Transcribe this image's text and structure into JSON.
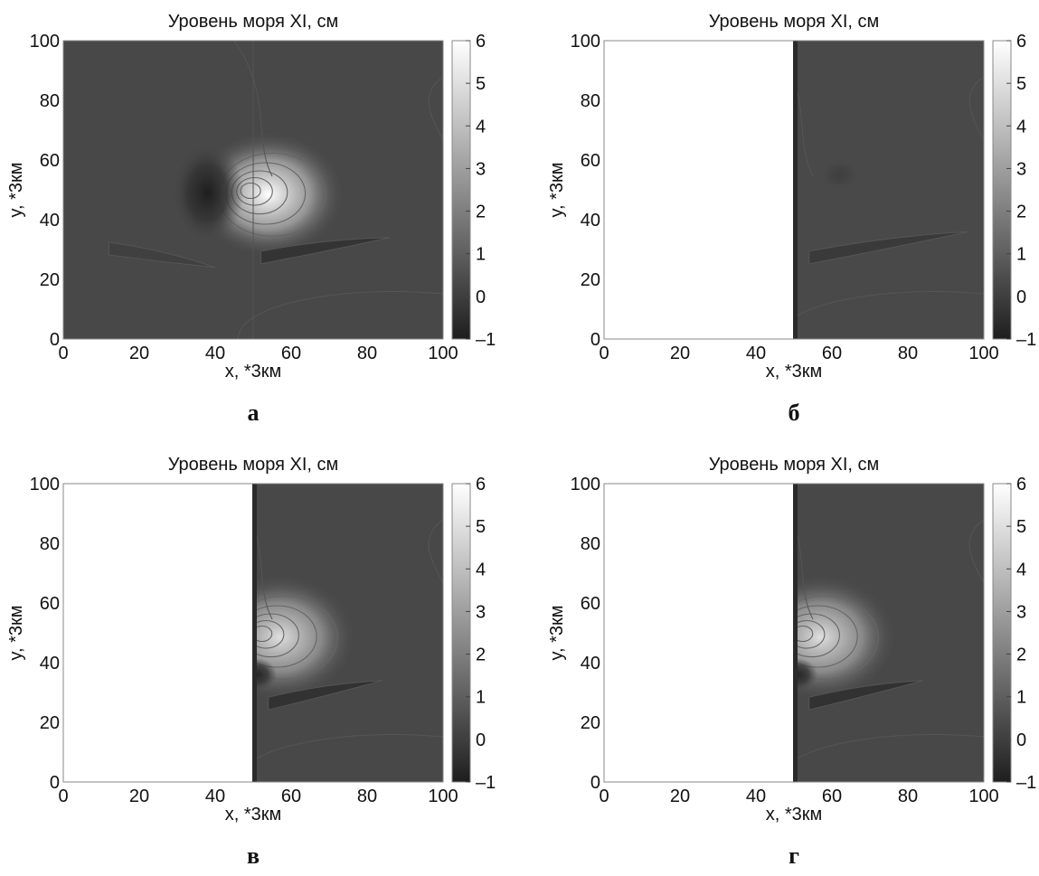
{
  "figure": {
    "panels": [
      {
        "letter": "а",
        "title": "Уровень моря XI, см"
      },
      {
        "letter": "б",
        "title": "Уровень моря XI, см"
      },
      {
        "letter": "в",
        "title": "Уровень моря XI, см"
      },
      {
        "letter": "г",
        "title": "Уровень моря XI, см"
      }
    ]
  },
  "chart_data": [
    {
      "type": "heatmap",
      "title": "Уровень моря XI, см",
      "xlabel": "x, *3км",
      "ylabel": "y, *3км",
      "xlim": [
        0,
        100
      ],
      "ylim": [
        0,
        100
      ],
      "xticks": [
        0,
        20,
        40,
        60,
        80,
        100
      ],
      "yticks": [
        0,
        20,
        40,
        60,
        80,
        100
      ],
      "colorbar": {
        "range": [
          -1,
          6
        ],
        "ticks": [
          -1,
          0,
          1,
          2,
          3,
          4,
          5,
          6
        ],
        "colormap": "gray"
      },
      "background_level": 0.3,
      "masked_left_of_x": null,
      "features": [
        {
          "kind": "max",
          "x": 48,
          "y": 50,
          "value": 6
        },
        {
          "kind": "min",
          "x": 38,
          "y": 49,
          "value": -1
        },
        {
          "kind": "trough",
          "x_from": 52,
          "y_from": 27,
          "x_to": 86,
          "y_to": 34,
          "value": -0.5
        },
        {
          "kind": "trough",
          "x_from": 12,
          "y_from": 30,
          "x_to": 40,
          "y_to": 24,
          "value": 0
        }
      ]
    },
    {
      "type": "heatmap",
      "title": "Уровень моря XI, см",
      "xlabel": "x, *3км",
      "ylabel": "y, *3км",
      "xlim": [
        0,
        100
      ],
      "ylim": [
        0,
        100
      ],
      "xticks": [
        0,
        20,
        40,
        60,
        80,
        100
      ],
      "yticks": [
        0,
        20,
        40,
        60,
        80,
        100
      ],
      "colorbar": {
        "range": [
          -1,
          6
        ],
        "ticks": [
          -1,
          0,
          1,
          2,
          3,
          4,
          5,
          6
        ],
        "colormap": "gray"
      },
      "background_level": 0.35,
      "masked_left_of_x": 50,
      "features": [
        {
          "kind": "min",
          "x": 62,
          "y": 55,
          "value": 0
        },
        {
          "kind": "trough",
          "x_from": 54,
          "y_from": 27,
          "x_to": 96,
          "y_to": 36,
          "value": -0.3
        }
      ]
    },
    {
      "type": "heatmap",
      "title": "Уровень моря XI, см",
      "xlabel": "x, *3км",
      "ylabel": "y, *3км",
      "xlim": [
        0,
        100
      ],
      "ylim": [
        0,
        100
      ],
      "xticks": [
        0,
        20,
        40,
        60,
        80,
        100
      ],
      "yticks": [
        0,
        20,
        40,
        60,
        80,
        100
      ],
      "colorbar": {
        "range": [
          -1,
          6
        ],
        "ticks": [
          -1,
          0,
          1,
          2,
          3,
          4,
          5,
          6
        ],
        "colormap": "gray"
      },
      "background_level": 0.3,
      "masked_left_of_x": 50,
      "features": [
        {
          "kind": "max",
          "x": 51,
          "y": 50,
          "value": 5
        },
        {
          "kind": "min",
          "x": 51,
          "y": 36,
          "value": -0.8
        },
        {
          "kind": "trough",
          "x_from": 54,
          "y_from": 26,
          "x_to": 84,
          "y_to": 34,
          "value": -0.6
        }
      ]
    },
    {
      "type": "heatmap",
      "title": "Уровень моря XI, см",
      "xlabel": "x, *3км",
      "ylabel": "y, *3км",
      "xlim": [
        0,
        100
      ],
      "ylim": [
        0,
        100
      ],
      "xticks": [
        0,
        20,
        40,
        60,
        80,
        100
      ],
      "yticks": [
        0,
        20,
        40,
        60,
        80,
        100
      ],
      "colorbar": {
        "range": [
          -1,
          6
        ],
        "ticks": [
          -1,
          0,
          1,
          2,
          3,
          4,
          5,
          6
        ],
        "colormap": "gray"
      },
      "background_level": 0.3,
      "masked_left_of_x": 50,
      "features": [
        {
          "kind": "max",
          "x": 51,
          "y": 50,
          "value": 5
        },
        {
          "kind": "min",
          "x": 51,
          "y": 36,
          "value": -0.8
        },
        {
          "kind": "trough",
          "x_from": 54,
          "y_from": 26,
          "x_to": 84,
          "y_to": 34,
          "value": -0.6
        }
      ]
    }
  ]
}
